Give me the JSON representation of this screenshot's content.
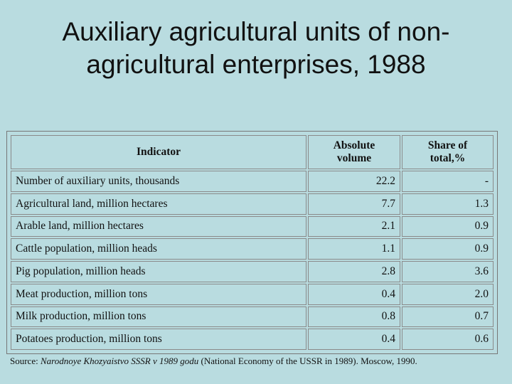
{
  "title": {
    "line1": "Auxiliary agricultural units of non-",
    "line2": "agricultural enterprises, 1988"
  },
  "table": {
    "headers": {
      "indicator": "Indicator",
      "volume_line1": "Absolute",
      "volume_line2": "volume",
      "share_line1": "Share of",
      "share_line2": "total,%"
    },
    "rows": [
      {
        "indicator": "Number of auxiliary units, thousands",
        "volume": "22.2",
        "share": "-"
      },
      {
        "indicator": "Agricultural land, million hectares",
        "volume": "7.7",
        "share": "1.3"
      },
      {
        "indicator": "Arable land, million hectares",
        "volume": "2.1",
        "share": "0.9"
      },
      {
        "indicator": "Cattle population, million heads",
        "volume": "1.1",
        "share": "0.9"
      },
      {
        "indicator": "Pig population, million heads",
        "volume": "2.8",
        "share": "3.6"
      },
      {
        "indicator": "Meat production, million tons",
        "volume": "0.4",
        "share": "2.0"
      },
      {
        "indicator": "Milk production, million tons",
        "volume": "0.8",
        "share": "0.7"
      },
      {
        "indicator": "Potatoes production, million tons",
        "volume": "0.4",
        "share": "0.6"
      }
    ]
  },
  "source": {
    "prefix": "Source: ",
    "italic": "Narodnoye Khozyaistvo SSSR v 1989 godu",
    "suffix": " (National Economy of the USSR in 1989). Moscow, 1990."
  }
}
